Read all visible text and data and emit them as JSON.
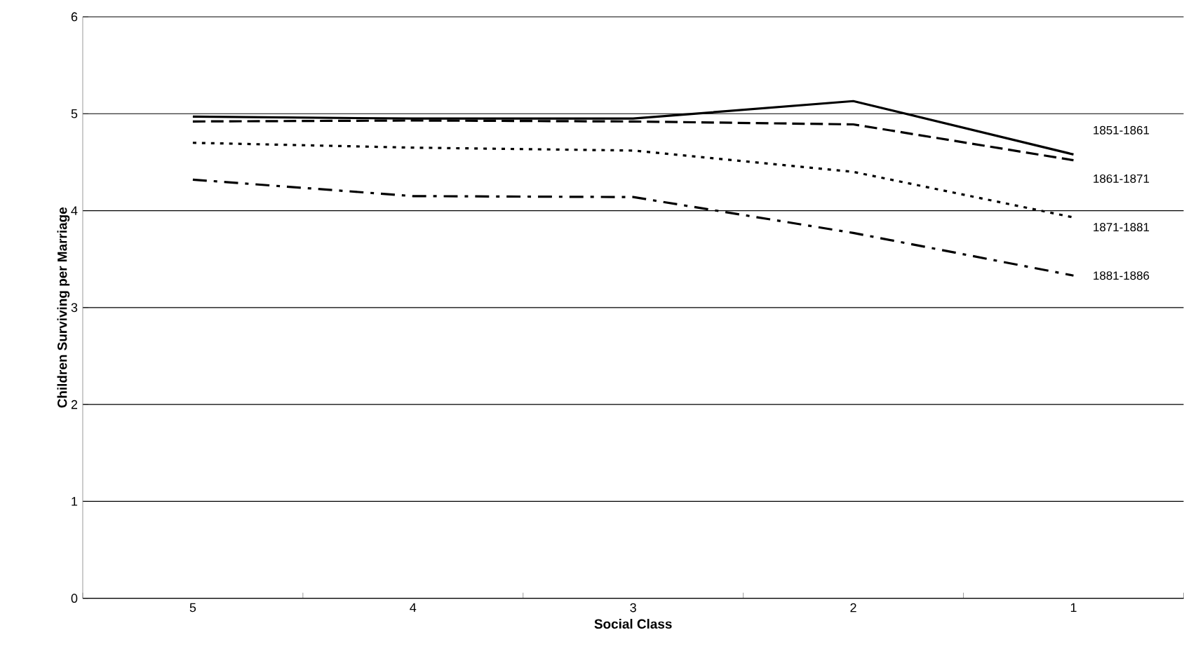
{
  "chart_data": {
    "type": "line",
    "xlabel": "Social Class",
    "ylabel": "Children Surviving per Marriage",
    "categories": [
      "5",
      "4",
      "3",
      "2",
      "1"
    ],
    "ylim": [
      0,
      6
    ],
    "yticks": [
      0,
      1,
      2,
      3,
      4,
      5,
      6
    ],
    "grid": "y",
    "marker": "none",
    "series": [
      {
        "name": "1851-1861",
        "color": "#000000",
        "line_style": "solid",
        "values": [
          4.97,
          4.95,
          4.95,
          5.13,
          4.58
        ]
      },
      {
        "name": "1861-1871",
        "color": "#000000",
        "line_style": "dashed",
        "values": [
          4.92,
          4.93,
          4.92,
          4.89,
          4.52
        ]
      },
      {
        "name": "1871-1881",
        "color": "#000000",
        "line_style": "dotted",
        "values": [
          4.7,
          4.65,
          4.62,
          4.4,
          3.93
        ]
      },
      {
        "name": "1881-1886",
        "color": "#000000",
        "line_style": "dashdot",
        "values": [
          4.32,
          4.15,
          4.14,
          3.77,
          3.33
        ]
      }
    ]
  }
}
